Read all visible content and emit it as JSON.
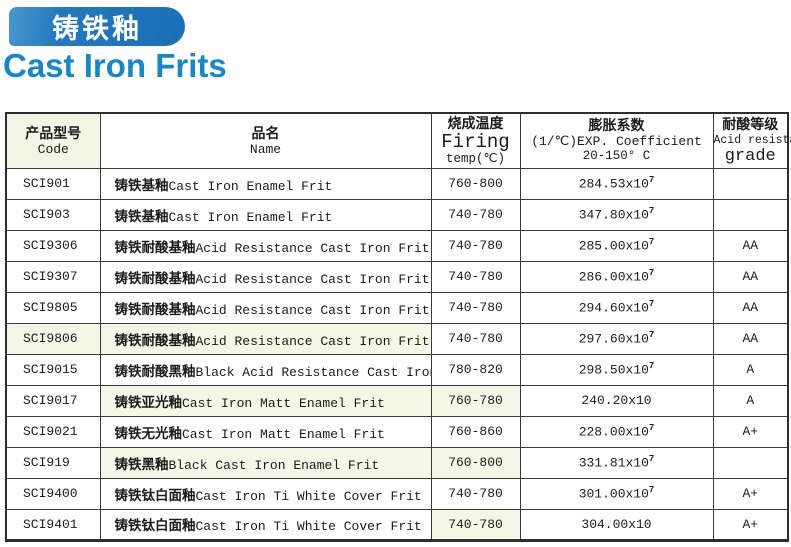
{
  "page": {
    "banner_title": "铸铁釉",
    "title": "Cast Iron Frits",
    "banner_color": "#1c74b9",
    "title_color": "#1588cb",
    "tint_color": "#f5f6e6"
  },
  "table": {
    "headers": [
      {
        "zh": "产品型号",
        "en": "Code"
      },
      {
        "zh": "品名",
        "en": "Name"
      },
      {
        "zh": "烧成温度",
        "en": "Firing",
        "sub": "temp(℃)"
      },
      {
        "zh": "膨胀系数",
        "en": "(1/℃)EXP. Coefficient",
        "sub": "20-150° C"
      },
      {
        "zh": "耐酸等级",
        "en": "Acid resistance",
        "sub": "grade"
      }
    ],
    "rows": [
      {
        "code": "SCI901",
        "name_zh": "铸铁基釉",
        "name_en": "Cast Iron Enamel Frit",
        "firing": "760-800",
        "coeff": "284.53x10",
        "coeff_sup": "7",
        "grade": "",
        "tint": []
      },
      {
        "code": "SCI903",
        "name_zh": "铸铁基釉",
        "name_en": "Cast Iron Enamel Frit",
        "firing": "740-780",
        "coeff": "347.80x10",
        "coeff_sup": "7",
        "grade": "",
        "tint": []
      },
      {
        "code": "SCI9306",
        "name_zh": "铸铁耐酸基釉",
        "name_en": "Acid Resistance Cast Iron Frit",
        "firing": "740-780",
        "coeff": "285.00x10",
        "coeff_sup": "7",
        "grade": "AA",
        "tint": []
      },
      {
        "code": "SCI9307",
        "name_zh": "铸铁耐酸基釉",
        "name_en": "Acid Resistance Cast Iron Frit",
        "firing": "740-780",
        "coeff": "286.00x10",
        "coeff_sup": "7",
        "grade": "AA",
        "tint": []
      },
      {
        "code": "SCI9805",
        "name_zh": "铸铁耐酸基釉",
        "name_en": "Acid Resistance Cast Iron Frit",
        "firing": "740-780",
        "coeff": "294.60x10",
        "coeff_sup": "7",
        "grade": "AA",
        "tint": []
      },
      {
        "code": "SCI9806",
        "name_zh": "铸铁耐酸基釉",
        "name_en": "Acid Resistance Cast Iron Frit",
        "firing": "740-780",
        "coeff": "297.60x10",
        "coeff_sup": "7",
        "grade": "AA",
        "tint": [
          "code",
          "name"
        ]
      },
      {
        "code": "SCI9015",
        "name_zh": "铸铁耐酸黑釉",
        "name_en": "Black Acid Resistance Cast Iron Frit",
        "firing": "780-820",
        "coeff": "298.50x10",
        "coeff_sup": "7",
        "grade": "A",
        "tint": []
      },
      {
        "code": "SCI9017",
        "name_zh": "铸铁亚光釉",
        "name_en": "Cast Iron Matt Enamel Frit",
        "firing": "760-780",
        "coeff": "240.20x10",
        "coeff_sup": "",
        "grade": "A",
        "tint": [
          "name",
          "firing"
        ]
      },
      {
        "code": "SCI9021",
        "name_zh": "铸铁无光釉",
        "name_en": "Cast Iron Matt Enamel Frit",
        "firing": "760-860",
        "coeff": "228.00x10",
        "coeff_sup": "7",
        "grade": "A+",
        "tint": []
      },
      {
        "code": "SCI919",
        "name_zh": "铸铁黑釉",
        "name_en": "Black Cast Iron Enamel Frit",
        "firing": "760-800",
        "coeff": "331.81x10",
        "coeff_sup": "7",
        "grade": "",
        "tint": [
          "name",
          "firing"
        ]
      },
      {
        "code": "SCI9400",
        "name_zh": "铸铁钛白面釉",
        "name_en": "Cast Iron Ti White Cover Frit",
        "firing": "740-780",
        "coeff": "301.00x10",
        "coeff_sup": "7",
        "grade": "A+",
        "tint": []
      },
      {
        "code": "SCI9401",
        "name_zh": "铸铁钛白面釉",
        "name_en": "Cast Iron Ti White Cover Frit",
        "firing": "740-780",
        "coeff": "304.00x10",
        "coeff_sup": "",
        "grade": "A+",
        "tint": [
          "firing"
        ]
      }
    ]
  }
}
